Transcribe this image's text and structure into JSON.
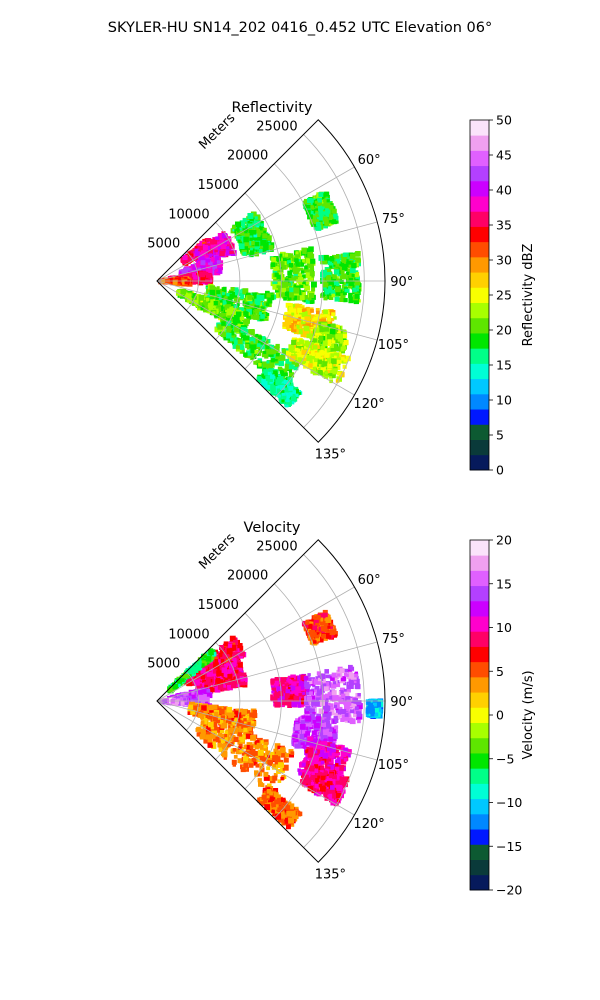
{
  "figure_title": "SKYLER-HU  SN14_202  0416_0.452 UTC Elevation 06°",
  "chart_data": [
    {
      "type": "heatmap",
      "subtype": "polar-sector-radar-ppi",
      "title": "Reflectivity",
      "range_axis_label": "Meters",
      "range_ticks": [
        5000,
        10000,
        15000,
        20000,
        25000
      ],
      "range_tick_labels": [
        "5000",
        "10000",
        "15000",
        "20000",
        "25000"
      ],
      "range_max": 27500,
      "azimuth_range_deg": [
        45,
        135
      ],
      "azimuth_ticks": [
        60,
        75,
        90,
        105,
        120,
        135
      ],
      "azimuth_tick_labels": [
        "60°",
        "75°",
        "90°",
        "105°",
        "120°",
        "135°"
      ],
      "grid": true,
      "colorbar": {
        "label": "Reflectivity dBZ",
        "min": 0,
        "max": 50,
        "ticks": [
          0,
          5,
          10,
          15,
          20,
          25,
          30,
          35,
          40,
          45,
          50
        ],
        "tick_labels": [
          "0",
          "5",
          "10",
          "15",
          "20",
          "25",
          "30",
          "35",
          "40",
          "45",
          "50"
        ],
        "colors": [
          "#061a5c",
          "#0a3a3a",
          "#0d5a32",
          "#0018ff",
          "#0088ff",
          "#00c8ff",
          "#00ffd5",
          "#00ff88",
          "#00e600",
          "#5ee600",
          "#a8ff00",
          "#f8ff00",
          "#ffd000",
          "#ff9900",
          "#ff4d00",
          "#ff0000",
          "#ff0066",
          "#ff00cc",
          "#cc00ff",
          "#b340ff",
          "#e060ff",
          "#f0a0f0",
          "#fbe3fb"
        ]
      },
      "blobs": [
        {
          "az": [
            50,
            58
          ],
          "r": [
            4000,
            8000
          ],
          "v": 35
        },
        {
          "az": [
            54,
            70
          ],
          "r": [
            5500,
            10000
          ],
          "v": 38
        },
        {
          "az": [
            68,
            82
          ],
          "r": [
            3000,
            8000
          ],
          "v": 40
        },
        {
          "az": [
            80,
            92
          ],
          "r": [
            1500,
            6500
          ],
          "v": 36
        },
        {
          "az": [
            86,
            96
          ],
          "r": [
            500,
            4000
          ],
          "v": 32
        },
        {
          "az": [
            55,
            75
          ],
          "r": [
            11000,
            14500
          ],
          "v": 18
        },
        {
          "az": [
            62,
            72
          ],
          "r": [
            20000,
            23000
          ],
          "v": 19
        },
        {
          "az": [
            78,
            98
          ],
          "r": [
            14000,
            19000
          ],
          "v": 20
        },
        {
          "az": [
            82,
            96
          ],
          "r": [
            20000,
            24500
          ],
          "v": 19
        },
        {
          "az": [
            96,
            112
          ],
          "r": [
            6000,
            14000
          ],
          "v": 19
        },
        {
          "az": [
            100,
            110
          ],
          "r": [
            16000,
            22000
          ],
          "v": 26
        },
        {
          "az": [
            104,
            118
          ],
          "r": [
            20000,
            24000
          ],
          "v": 22
        },
        {
          "az": [
            110,
            122
          ],
          "r": [
            3000,
            12000
          ],
          "v": 21
        },
        {
          "az": [
            118,
            130
          ],
          "r": [
            9000,
            20000
          ],
          "v": 19
        },
        {
          "az": [
            112,
            120
          ],
          "r": [
            18000,
            25000
          ],
          "v": 24
        },
        {
          "az": [
            128,
            134
          ],
          "r": [
            17000,
            22000
          ],
          "v": 16
        }
      ]
    },
    {
      "type": "heatmap",
      "subtype": "polar-sector-radar-ppi",
      "title": "Velocity",
      "range_axis_label": "Meters",
      "range_ticks": [
        5000,
        10000,
        15000,
        20000,
        25000
      ],
      "range_tick_labels": [
        "5000",
        "10000",
        "15000",
        "20000",
        "25000"
      ],
      "range_max": 27500,
      "azimuth_range_deg": [
        45,
        135
      ],
      "azimuth_ticks": [
        60,
        75,
        90,
        105,
        120,
        135
      ],
      "azimuth_tick_labels": [
        "60°",
        "75°",
        "90°",
        "105°",
        "120°",
        "135°"
      ],
      "grid": true,
      "colorbar": {
        "label": "Velocity (m/s)",
        "min": -20,
        "max": 20,
        "ticks": [
          -20,
          -15,
          -10,
          -5,
          0,
          5,
          10,
          15,
          20
        ],
        "tick_labels": [
          "−20",
          "−15",
          "−10",
          "−5",
          "0",
          "5",
          "10",
          "15",
          "20"
        ],
        "colors": [
          "#061a5c",
          "#0a3a3a",
          "#0d5a32",
          "#0018ff",
          "#0088ff",
          "#00c8ff",
          "#00ffd5",
          "#00ff88",
          "#00e600",
          "#5ee600",
          "#a8ff00",
          "#f8ff00",
          "#ffd000",
          "#ff9900",
          "#ff4d00",
          "#ff0000",
          "#ff0066",
          "#ff00cc",
          "#cc00ff",
          "#b340ff",
          "#e060ff",
          "#f0a0f0",
          "#fbe3fb"
        ]
      },
      "blobs": [
        {
          "az": [
            50,
            62
          ],
          "r": [
            4000,
            12000
          ],
          "v": 8
        },
        {
          "az": [
            62,
            80
          ],
          "r": [
            5000,
            11000
          ],
          "v": 9
        },
        {
          "az": [
            76,
            96
          ],
          "r": [
            1500,
            6500
          ],
          "v": 14
        },
        {
          "az": [
            86,
            96
          ],
          "r": [
            500,
            3500
          ],
          "v": 16
        },
        {
          "az": [
            96,
            110
          ],
          "r": [
            4000,
            12000
          ],
          "v": 4
        },
        {
          "az": [
            110,
            130
          ],
          "r": [
            6000,
            18000
          ],
          "v": 4
        },
        {
          "az": [
            62,
            70
          ],
          "r": [
            20000,
            23000
          ],
          "v": 6
        },
        {
          "az": [
            80,
            92
          ],
          "r": [
            14000,
            18000
          ],
          "v": 10
        },
        {
          "az": [
            80,
            96
          ],
          "r": [
            18000,
            24500
          ],
          "v": 15
        },
        {
          "az": [
            96,
            108
          ],
          "r": [
            17000,
            22000
          ],
          "v": 14
        },
        {
          "az": [
            104,
            118
          ],
          "r": [
            19000,
            24000
          ],
          "v": 10
        },
        {
          "az": [
            112,
            120
          ],
          "r": [
            20000,
            25000
          ],
          "v": 9
        },
        {
          "az": [
            128,
            134
          ],
          "r": [
            17000,
            22000
          ],
          "v": 5
        },
        {
          "az": [
            46,
            52
          ],
          "r": [
            2000,
            9000
          ],
          "v": -6
        },
        {
          "az": [
            90,
            94
          ],
          "r": [
            25500,
            27000
          ],
          "v": -11
        }
      ]
    }
  ]
}
